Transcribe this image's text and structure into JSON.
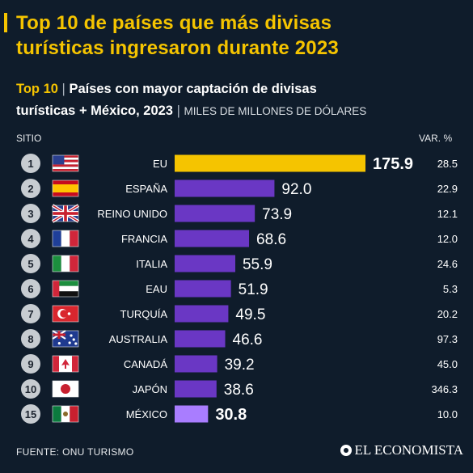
{
  "header": {
    "title_line1": "Top 10 de países que más divisas",
    "title_line2": "turísticas ingresaron durante 2023",
    "subtitle_lead": "Top 10",
    "subtitle_line1": "Países con mayor captación de divisas",
    "subtitle_line2": "turísticas + México, 2023",
    "subtitle_units": "MILES DE MILLONES DE DÓLARES"
  },
  "columns": {
    "rank": "SITIO",
    "change": "VAR. %"
  },
  "footer": {
    "source": "FUENTE: ONU TURISMO",
    "brand": "EL ECONOMISTA"
  },
  "colors": {
    "background": "#0f1c2b",
    "accent": "#f5c400",
    "bar": "#6a37c4",
    "bar_highlight": "#f5c400",
    "bar_mexico": "#a97dff",
    "rank_badge": "#c7ccd1"
  },
  "chart_data": {
    "type": "bar",
    "orientation": "horizontal",
    "rows": [
      {
        "rank": "1",
        "flag": "us-flag-icon",
        "country": "EU",
        "value": 175.9,
        "value_label": "175.9",
        "change": "28.5",
        "style": "highlight"
      },
      {
        "rank": "2",
        "flag": "spain-flag-icon",
        "country": "ESPAÑA",
        "value": 92.0,
        "value_label": "92.0",
        "change": "22.9",
        "style": "normal"
      },
      {
        "rank": "3",
        "flag": "uk-flag-icon",
        "country": "REINO UNIDO",
        "value": 73.9,
        "value_label": "73.9",
        "change": "12.1",
        "style": "normal"
      },
      {
        "rank": "4",
        "flag": "france-flag-icon",
        "country": "FRANCIA",
        "value": 68.6,
        "value_label": "68.6",
        "change": "12.0",
        "style": "normal"
      },
      {
        "rank": "5",
        "flag": "italy-flag-icon",
        "country": "ITALIA",
        "value": 55.9,
        "value_label": "55.9",
        "change": "24.6",
        "style": "normal"
      },
      {
        "rank": "6",
        "flag": "uae-flag-icon",
        "country": "EAU",
        "value": 51.9,
        "value_label": "51.9",
        "change": "5.3",
        "style": "normal"
      },
      {
        "rank": "7",
        "flag": "turkey-flag-icon",
        "country": "TURQUÍA",
        "value": 49.5,
        "value_label": "49.5",
        "change": "20.2",
        "style": "normal"
      },
      {
        "rank": "8",
        "flag": "australia-flag-icon",
        "country": "AUSTRALIA",
        "value": 46.6,
        "value_label": "46.6",
        "change": "97.3",
        "style": "normal"
      },
      {
        "rank": "9",
        "flag": "canada-flag-icon",
        "country": "CANADÁ",
        "value": 39.2,
        "value_label": "39.2",
        "change": "45.0",
        "style": "normal"
      },
      {
        "rank": "10",
        "flag": "japan-flag-icon",
        "country": "JAPÓN",
        "value": 38.6,
        "value_label": "38.6",
        "change": "346.3",
        "style": "normal"
      },
      {
        "rank": "15",
        "flag": "mexico-flag-icon",
        "country": "MÉXICO",
        "value": 30.8,
        "value_label": "30.8",
        "change": "10.0",
        "style": "mexico"
      }
    ]
  }
}
